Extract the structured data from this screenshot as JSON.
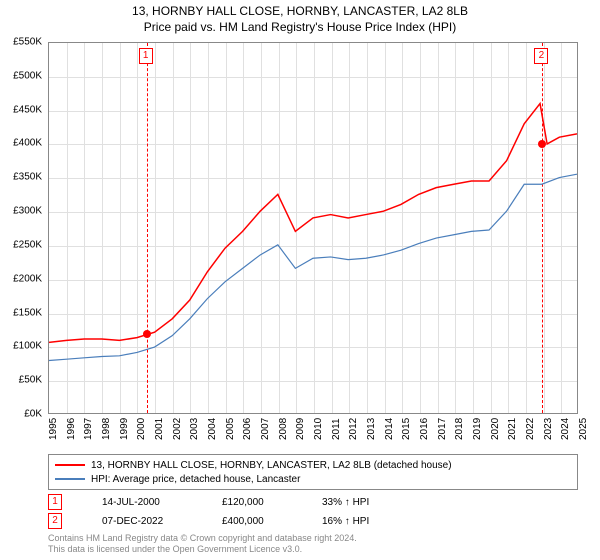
{
  "title": {
    "line1": "13, HORNBY HALL CLOSE, HORNBY, LANCASTER, LA2 8LB",
    "line2": "Price paid vs. HM Land Registry's House Price Index (HPI)"
  },
  "chart": {
    "type": "line",
    "background_color": "#ffffff",
    "grid_color": "#e0e0e0",
    "border_color": "#888888",
    "ylim": [
      0,
      550
    ],
    "ytick_step": 50,
    "y_prefix": "£",
    "y_suffix": "K",
    "xlim": [
      1995,
      2025
    ],
    "xtick_step": 1,
    "axis_fontsize": 10,
    "axis_color": "#000000",
    "title_fontsize": 12,
    "series": [
      {
        "name": "price_paid",
        "label": "13, HORNBY HALL CLOSE, HORNBY, LANCASTER, LA2 8LB (detached house)",
        "color": "#ff0000",
        "line_width": 1.5,
        "years": [
          1995,
          1996,
          1997,
          1998,
          1999,
          2000,
          2001,
          2002,
          2003,
          2004,
          2005,
          2006,
          2007,
          2008,
          2009,
          2010,
          2011,
          2012,
          2013,
          2014,
          2015,
          2016,
          2017,
          2018,
          2019,
          2020,
          2021,
          2022,
          2022.9,
          2023.3,
          2024,
          2025
        ],
        "values": [
          105,
          108,
          110,
          110,
          108,
          112,
          120,
          140,
          168,
          210,
          245,
          270,
          300,
          325,
          270,
          290,
          295,
          290,
          295,
          300,
          310,
          325,
          335,
          340,
          345,
          345,
          375,
          430,
          460,
          400,
          410,
          415
        ]
      },
      {
        "name": "hpi",
        "label": "HPI: Average price, detached house, Lancaster",
        "color": "#4a7ebb",
        "line_width": 1.2,
        "years": [
          1995,
          1996,
          1997,
          1998,
          1999,
          2000,
          2001,
          2002,
          2003,
          2004,
          2005,
          2006,
          2007,
          2008,
          2009,
          2010,
          2011,
          2012,
          2013,
          2014,
          2015,
          2016,
          2017,
          2018,
          2019,
          2020,
          2021,
          2022,
          2023,
          2024,
          2025
        ],
        "values": [
          78,
          80,
          82,
          84,
          85,
          90,
          98,
          115,
          140,
          170,
          195,
          215,
          235,
          250,
          215,
          230,
          232,
          228,
          230,
          235,
          242,
          252,
          260,
          265,
          270,
          272,
          300,
          340,
          340,
          350,
          355
        ]
      }
    ],
    "markers": [
      {
        "id": "1",
        "year": 2000.53,
        "value": 120
      },
      {
        "id": "2",
        "year": 2022.93,
        "value": 400
      }
    ]
  },
  "legend": {
    "rows": [
      {
        "color": "#ff0000",
        "label_ref": "chart.series.0.label"
      },
      {
        "color": "#4a7ebb",
        "label_ref": "chart.series.1.label"
      }
    ]
  },
  "events": [
    {
      "id": "1",
      "date": "14-JUL-2000",
      "price": "£120,000",
      "pct": "33% ↑ HPI"
    },
    {
      "id": "2",
      "date": "07-DEC-2022",
      "price": "£400,000",
      "pct": "16% ↑ HPI"
    }
  ],
  "footnote": {
    "line1": "Contains HM Land Registry data © Crown copyright and database right 2024.",
    "line2": "This data is licensed under the Open Government Licence v3.0."
  }
}
